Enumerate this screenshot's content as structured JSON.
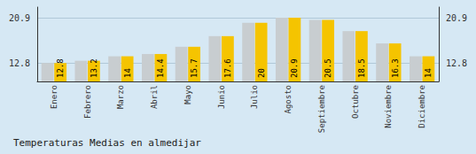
{
  "chart_data": {
    "type": "bar",
    "title": "Temperaturas Medias en almedijar",
    "categories": [
      "Enero",
      "Febrero",
      "Marzo",
      "Abril",
      "Mayo",
      "Junio",
      "Julio",
      "Agosto",
      "Septiembre",
      "Octubre",
      "Noviembre",
      "Diciembre"
    ],
    "series": [
      {
        "color": "#C8CDD0",
        "values": [
          12.8,
          13.2,
          14.0,
          14.4,
          15.7,
          17.6,
          20.0,
          20.9,
          20.5,
          18.5,
          16.3,
          14.0
        ]
      },
      {
        "color": "#F5C400",
        "values": [
          12.8,
          13.2,
          14.0,
          14.4,
          15.7,
          17.6,
          20.0,
          20.9,
          20.5,
          18.5,
          16.3,
          14.0
        ],
        "data_labels": true
      }
    ],
    "ylim": [
      9.5,
      22.8
    ],
    "yticks": [
      12.8,
      20.9
    ],
    "y2lim": [
      9.5,
      22.8
    ],
    "y2ticks": [
      12.8,
      20.9
    ],
    "grid": true
  }
}
